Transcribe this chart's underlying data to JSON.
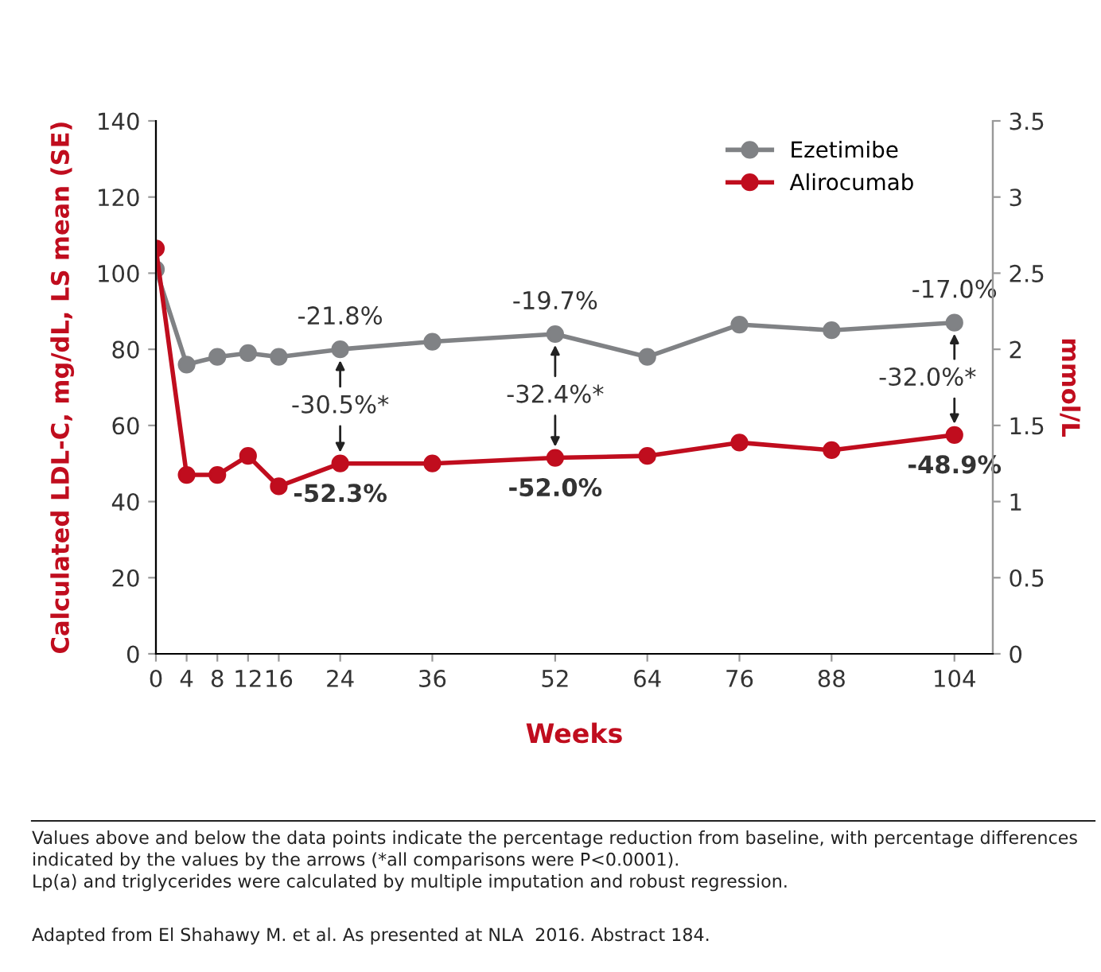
{
  "chart_data": {
    "type": "line",
    "xlabel": "Weeks",
    "ylabel": "Calculated LDL-C, mg/dL, LS mean (SE)",
    "y2label": "mmol/L",
    "x": [
      0,
      4,
      8,
      12,
      16,
      24,
      36,
      52,
      64,
      76,
      88,
      104
    ],
    "series": [
      {
        "name": "Ezetimibe",
        "color": "#808285",
        "values": [
          101,
          76,
          78,
          79,
          78,
          80,
          82,
          84,
          78,
          86.5,
          85,
          87
        ]
      },
      {
        "name": "Alirocumab",
        "color": "#c00d1e",
        "values": [
          106.5,
          47,
          47,
          52,
          44,
          50,
          50,
          51.5,
          52,
          55.5,
          53.5,
          57.5
        ]
      }
    ],
    "xlim": [
      0,
      109
    ],
    "xticks": [
      0,
      4,
      8,
      12,
      16,
      24,
      36,
      52,
      64,
      76,
      88,
      104
    ],
    "ylim": [
      0,
      140
    ],
    "yticks": [
      0,
      20,
      40,
      60,
      80,
      100,
      120,
      140
    ],
    "y2lim": [
      0,
      3.5
    ],
    "y2ticks": [
      0,
      0.5,
      1,
      1.5,
      2,
      2.5,
      3,
      3.5
    ],
    "legend": "top right",
    "marker": "circle",
    "line_style": "solid",
    "grid": false,
    "annotations": [
      {
        "text": "-21.8%",
        "x": 24,
        "y": 80
      },
      {
        "text": "-30.5%*",
        "x": 24,
        "y": 80
      },
      {
        "text": "-52.3%",
        "x": 24,
        "y": 50
      },
      {
        "text": "-19.7%",
        "x": 52,
        "y": 84
      },
      {
        "text": "-32.4%*",
        "x": 52,
        "y": 84
      },
      {
        "text": "-52.0%",
        "x": 52,
        "y": 51.5
      },
      {
        "text": "-17.0%",
        "x": 104,
        "y": 87
      },
      {
        "text": "-32.0%*",
        "x": 104,
        "y": 87
      },
      {
        "text": "-48.9%",
        "x": 104,
        "y": 57.5
      },
      "Values above and below the data points indicate the percentage reduction from baseline, with percentage differences indicated by the values by the arrows (*all comparisons were P<0.0001).\nLp(a) and triglycerides were calculated by multiple imputation and robust regression.",
      "Adapted from El Shahawy M. et al. As presented at NLA  2016. Abstract 184."
    ]
  }
}
